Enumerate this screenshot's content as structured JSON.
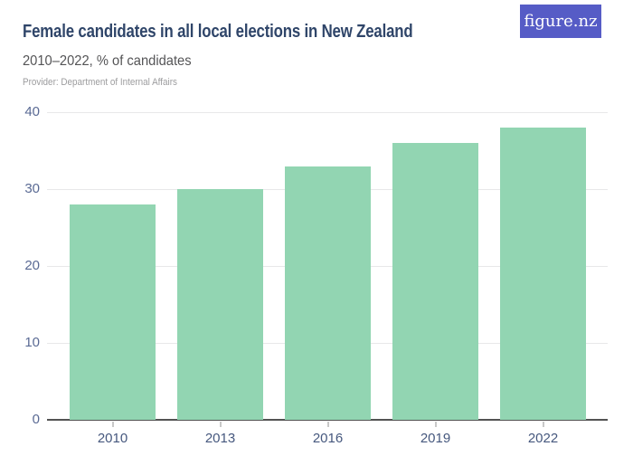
{
  "header": {
    "title": "Female candidates in all local elections in New Zealand",
    "subtitle": "2010–2022, % of candidates",
    "provider": "Provider: Department of Internal Affairs",
    "logo_text": "figure.nz"
  },
  "colors": {
    "bar": "#92d5b2",
    "logo_background": "#565cc6",
    "title_text": "#2f4569",
    "subtitle_text": "#545456",
    "provider_text": "#9c9c9e",
    "y_axis_label": "#5a6a94",
    "x_axis_label": "#46587e",
    "gridline": "#e8e8e9",
    "axis_line": "#525252"
  },
  "chart_data": {
    "type": "bar",
    "title": "Female candidates in all local elections in New Zealand",
    "subtitle": "2010–2022, % of candidates",
    "categories": [
      "2010",
      "2013",
      "2016",
      "2019",
      "2022"
    ],
    "values": [
      28,
      30,
      33,
      36,
      38
    ],
    "series_name": "% of candidates",
    "xlabel": "",
    "ylabel": "% of candidates",
    "ylim": [
      0,
      40
    ],
    "yticks": [
      0,
      10,
      20,
      30,
      40
    ],
    "grid": "horizontal",
    "legend": "none",
    "bar_color": "#92d5b2"
  }
}
